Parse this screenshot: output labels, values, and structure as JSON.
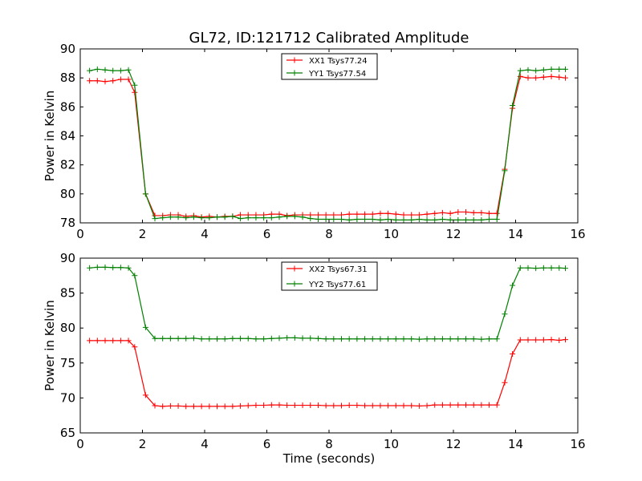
{
  "chart_data": [
    {
      "type": "line",
      "title": "GL72, ID:121712 Calibrated Amplitude",
      "xlabel": "",
      "ylabel": "Power in Kelvin",
      "xlim": [
        0,
        16
      ],
      "ylim": [
        78,
        90
      ],
      "xticks": [
        0,
        2,
        4,
        6,
        8,
        10,
        12,
        14,
        16
      ],
      "yticks": [
        78,
        80,
        82,
        84,
        86,
        88,
        90
      ],
      "grid": false,
      "legend_position": "top-center",
      "x": [
        0.3,
        0.55,
        0.8,
        1.05,
        1.3,
        1.55,
        1.75,
        2.1,
        2.4,
        2.65,
        2.9,
        3.15,
        3.4,
        3.65,
        3.9,
        4.15,
        4.4,
        4.65,
        4.9,
        5.15,
        5.4,
        5.65,
        5.9,
        6.15,
        6.4,
        6.65,
        6.9,
        7.15,
        7.4,
        7.65,
        7.9,
        8.15,
        8.4,
        8.65,
        8.9,
        9.15,
        9.4,
        9.65,
        9.9,
        10.15,
        10.4,
        10.65,
        10.9,
        11.15,
        11.4,
        11.65,
        11.9,
        12.15,
        12.4,
        12.65,
        12.9,
        13.15,
        13.4,
        13.65,
        13.9,
        14.15,
        14.4,
        14.65,
        14.9,
        15.15,
        15.4,
        15.6
      ],
      "series": [
        {
          "name": "XX1 Tsys77.24",
          "color": "#ff0000",
          "values": [
            87.8,
            87.8,
            87.75,
            87.8,
            87.9,
            87.9,
            87.0,
            80.0,
            78.5,
            78.5,
            78.55,
            78.55,
            78.45,
            78.5,
            78.4,
            78.45,
            78.4,
            78.45,
            78.45,
            78.55,
            78.55,
            78.55,
            78.55,
            78.6,
            78.6,
            78.5,
            78.55,
            78.55,
            78.55,
            78.55,
            78.55,
            78.55,
            78.55,
            78.6,
            78.6,
            78.6,
            78.6,
            78.65,
            78.65,
            78.6,
            78.55,
            78.55,
            78.55,
            78.6,
            78.65,
            78.7,
            78.65,
            78.75,
            78.75,
            78.7,
            78.7,
            78.65,
            78.65,
            81.7,
            85.9,
            88.1,
            88.0,
            88.0,
            88.05,
            88.1,
            88.05,
            88.0
          ]
        },
        {
          "name": "YY1 Tsys77.54",
          "color": "#008000",
          "values": [
            88.5,
            88.6,
            88.55,
            88.5,
            88.5,
            88.55,
            87.5,
            80.0,
            78.3,
            78.35,
            78.4,
            78.4,
            78.35,
            78.4,
            78.35,
            78.35,
            78.4,
            78.4,
            78.45,
            78.3,
            78.35,
            78.35,
            78.35,
            78.35,
            78.4,
            78.45,
            78.45,
            78.4,
            78.3,
            78.25,
            78.25,
            78.25,
            78.25,
            78.2,
            78.25,
            78.25,
            78.25,
            78.2,
            78.25,
            78.2,
            78.2,
            78.2,
            78.25,
            78.2,
            78.2,
            78.25,
            78.2,
            78.2,
            78.2,
            78.2,
            78.2,
            78.25,
            78.25,
            81.6,
            86.1,
            88.5,
            88.55,
            88.5,
            88.55,
            88.6,
            88.6,
            88.6
          ]
        }
      ]
    },
    {
      "type": "line",
      "title": "",
      "xlabel": "Time (seconds)",
      "ylabel": "Power in Kelvin",
      "xlim": [
        0,
        16
      ],
      "ylim": [
        65,
        90
      ],
      "xticks": [
        0,
        2,
        4,
        6,
        8,
        10,
        12,
        14,
        16
      ],
      "yticks": [
        65,
        70,
        75,
        80,
        85,
        90
      ],
      "grid": false,
      "legend_position": "top-center",
      "x": [
        0.3,
        0.55,
        0.8,
        1.05,
        1.3,
        1.55,
        1.75,
        2.1,
        2.4,
        2.65,
        2.9,
        3.15,
        3.4,
        3.65,
        3.9,
        4.15,
        4.4,
        4.65,
        4.9,
        5.15,
        5.4,
        5.65,
        5.9,
        6.15,
        6.4,
        6.65,
        6.9,
        7.15,
        7.4,
        7.65,
        7.9,
        8.15,
        8.4,
        8.65,
        8.9,
        9.15,
        9.4,
        9.65,
        9.9,
        10.15,
        10.4,
        10.65,
        10.9,
        11.15,
        11.4,
        11.65,
        11.9,
        12.15,
        12.4,
        12.65,
        12.9,
        13.15,
        13.4,
        13.65,
        13.9,
        14.15,
        14.4,
        14.65,
        14.9,
        15.15,
        15.4,
        15.6
      ],
      "series": [
        {
          "name": "XX2 Tsys67.31",
          "color": "#ff0000",
          "values": [
            78.2,
            78.2,
            78.2,
            78.2,
            78.2,
            78.2,
            77.3,
            70.4,
            68.9,
            68.8,
            68.85,
            68.85,
            68.8,
            68.8,
            68.8,
            68.8,
            68.8,
            68.8,
            68.8,
            68.85,
            68.9,
            68.95,
            68.95,
            69.0,
            69.0,
            68.95,
            68.95,
            68.95,
            68.95,
            68.95,
            68.9,
            68.9,
            68.9,
            68.95,
            68.95,
            68.9,
            68.9,
            68.9,
            68.9,
            68.9,
            68.9,
            68.9,
            68.85,
            68.9,
            69.0,
            69.0,
            69.0,
            69.0,
            69.0,
            69.0,
            69.0,
            69.0,
            69.0,
            72.2,
            76.3,
            78.3,
            78.3,
            78.3,
            78.3,
            78.35,
            78.25,
            78.35
          ]
        },
        {
          "name": "YY2 Tsys77.61",
          "color": "#008000",
          "values": [
            88.6,
            88.7,
            88.7,
            88.65,
            88.65,
            88.6,
            87.5,
            80.1,
            78.5,
            78.5,
            78.5,
            78.5,
            78.5,
            78.55,
            78.45,
            78.45,
            78.45,
            78.45,
            78.5,
            78.5,
            78.5,
            78.45,
            78.45,
            78.5,
            78.55,
            78.6,
            78.6,
            78.55,
            78.55,
            78.5,
            78.45,
            78.45,
            78.45,
            78.45,
            78.45,
            78.45,
            78.45,
            78.45,
            78.45,
            78.45,
            78.45,
            78.45,
            78.4,
            78.45,
            78.45,
            78.45,
            78.45,
            78.45,
            78.45,
            78.45,
            78.4,
            78.45,
            78.45,
            82.0,
            86.1,
            88.6,
            88.6,
            88.55,
            88.6,
            88.6,
            88.6,
            88.55
          ]
        }
      ]
    }
  ]
}
